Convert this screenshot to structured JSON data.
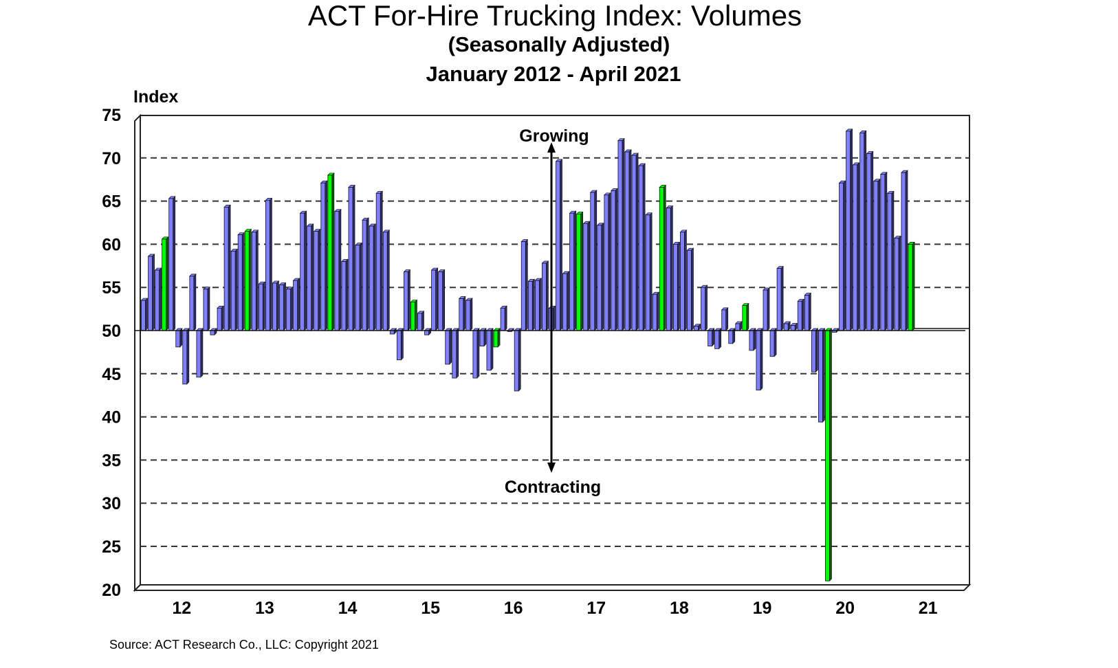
{
  "chart_data": {
    "type": "bar",
    "title": "ACT For-Hire Trucking Index: Volumes",
    "subtitle": "(Seasonally Adjusted)",
    "date_range": "January 2012 - April 2021",
    "ylabel": "Index",
    "xlabel": "",
    "ylim": [
      20,
      75
    ],
    "yticks": [
      75,
      70,
      65,
      60,
      55,
      50,
      45,
      40,
      35,
      30,
      25,
      20
    ],
    "xtick_labels": [
      "12",
      "13",
      "14",
      "15",
      "16",
      "17",
      "18",
      "19",
      "20",
      "21"
    ],
    "baseline": 50,
    "grid": true,
    "start": "2012-01",
    "end": "2021-04",
    "x_axis_end": "2021-12",
    "values": [
      53.5,
      58.6,
      57.0,
      60.6,
      65.3,
      48.1,
      43.8,
      56.3,
      44.6,
      54.8,
      49.5,
      52.6,
      64.3,
      59.2,
      61.1,
      61.5,
      61.4,
      55.4,
      65.1,
      55.5,
      55.3,
      54.8,
      55.8,
      63.6,
      62.1,
      61.5,
      67.1,
      68.0,
      63.8,
      58.0,
      66.6,
      59.9,
      62.8,
      62.1,
      65.9,
      61.4,
      49.6,
      46.6,
      56.8,
      53.3,
      52.0,
      49.5,
      57.0,
      56.8,
      46.1,
      44.5,
      53.7,
      53.5,
      44.5,
      48.2,
      45.4,
      48.1,
      52.6,
      49.9,
      43.0,
      60.3,
      55.7,
      55.8,
      57.8,
      52.6,
      69.6,
      56.6,
      63.6,
      63.5,
      62.4,
      66.0,
      62.2,
      65.7,
      66.2,
      72.0,
      70.7,
      70.3,
      69.1,
      63.4,
      54.2,
      66.6,
      64.2,
      60.0,
      61.4,
      59.3,
      50.5,
      55.0,
      48.2,
      47.9,
      52.4,
      48.5,
      50.8,
      52.9,
      47.7,
      43.1,
      54.7,
      47.0,
      57.2,
      50.8,
      50.6,
      53.4,
      54.1,
      45.2,
      39.4,
      21.0,
      49.8,
      67.1,
      73.1,
      69.2,
      72.9,
      70.5,
      67.3,
      68.1,
      65.9,
      60.7,
      68.3,
      60.0
    ],
    "highlight_month": "April",
    "colors": {
      "bar": "#8080ff",
      "bar_side": "#2e2e6e",
      "highlight": "#00ff00",
      "highlight_side": "#006400"
    },
    "annotations": {
      "growing": "Growing",
      "contracting": "Contracting"
    },
    "source": "Source:  ACT Research  Co., LLC: Copyright  2021"
  }
}
